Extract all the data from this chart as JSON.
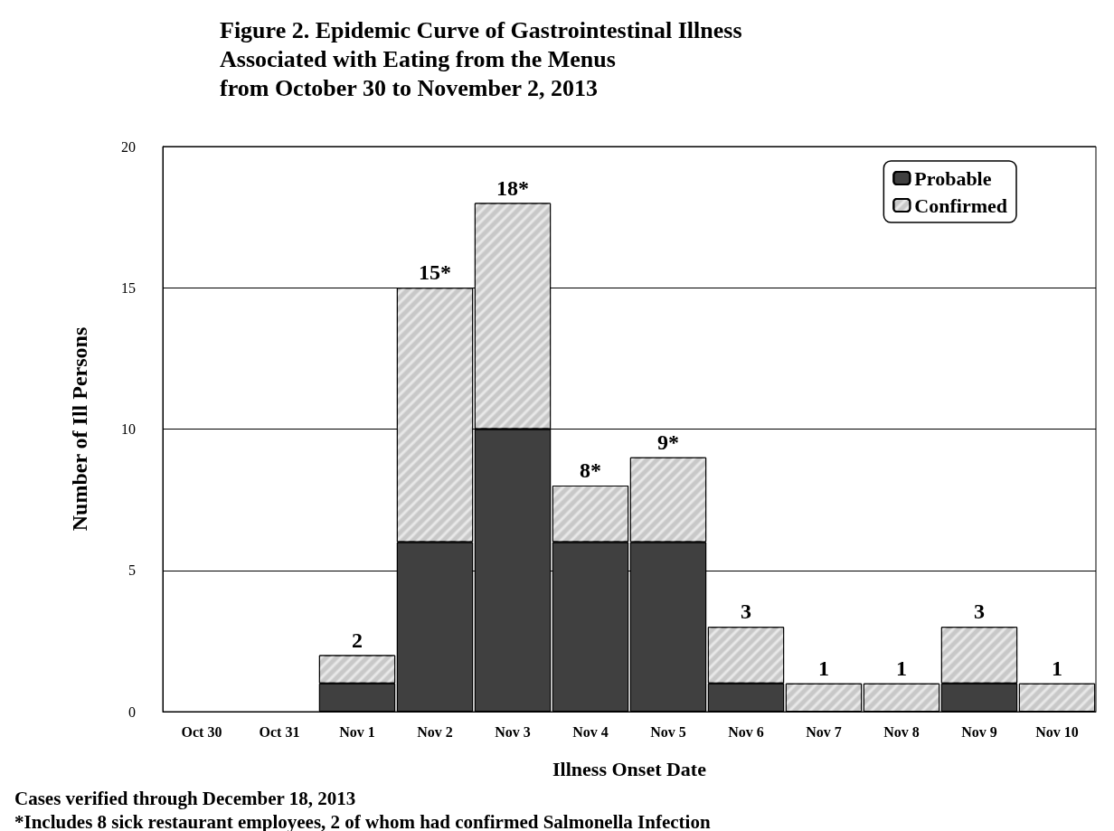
{
  "chart_data": {
    "type": "bar",
    "title": "Figure 2. Epidemic Curve of Gastrointestinal Illness\nAssociated with Eating from the Menus\nfrom October 30 to November 2, 2013",
    "xlabel": "Illness Onset Date",
    "ylabel": "Number of Ill Persons",
    "categories": [
      "Oct 30",
      "Oct 31",
      "Nov 1",
      "Nov 2",
      "Nov 3",
      "Nov 4",
      "Nov 5",
      "Nov 6",
      "Nov 7",
      "Nov 8",
      "Nov 9",
      "Nov 10"
    ],
    "stacked": true,
    "series": [
      {
        "name": "Probable",
        "color": "#404040",
        "values": [
          0,
          0,
          1,
          6,
          10,
          6,
          6,
          1,
          0,
          0,
          1,
          0
        ]
      },
      {
        "name": "Confirmed",
        "color": "#c8c8c8",
        "values": [
          0,
          0,
          1,
          9,
          8,
          2,
          3,
          2,
          1,
          1,
          2,
          1
        ]
      }
    ],
    "totals": [
      null,
      null,
      "2",
      "15*",
      "18*",
      "8*",
      "9*",
      "3",
      "1",
      "1",
      "3",
      "1"
    ],
    "ylim": [
      0,
      20
    ],
    "yticks": [
      0,
      5,
      10,
      15,
      20
    ],
    "grid": "y",
    "legend": "top right",
    "annotations": [
      "Cases verified through December 18, 2013",
      "*Includes 8 sick restaurant employees, 2 of whom had confirmed Salmonella Infection"
    ]
  }
}
